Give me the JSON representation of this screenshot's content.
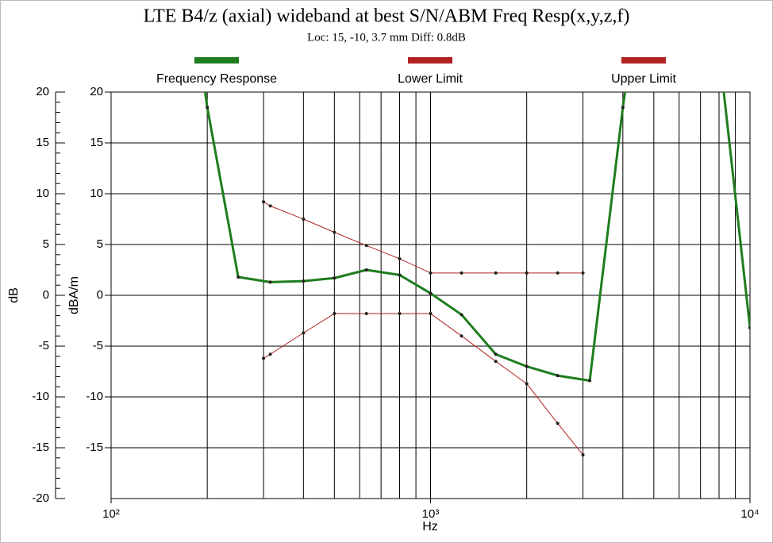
{
  "chart_data": {
    "type": "line",
    "title": "LTE B4/z (axial) wideband at best S/N/ABM Freq Resp(x,y,z,f)",
    "subtitle": "Loc: 15, -10, 3.7 mm Diff: 0.8dB",
    "xlabel": "Hz",
    "ylabel": "dB",
    "y2label": "dBA/m",
    "xscale": "log",
    "xlim": [
      100,
      10000
    ],
    "xticks": [
      {
        "value": 100,
        "label": "10²"
      },
      {
        "value": 1000,
        "label": "10³"
      },
      {
        "value": 10000,
        "label": "10⁴"
      }
    ],
    "xminor": [
      200,
      300,
      400,
      500,
      600,
      700,
      800,
      900,
      2000,
      3000,
      4000,
      5000,
      6000,
      7000,
      8000,
      9000
    ],
    "ylim": [
      -20,
      20
    ],
    "yticks": [
      -20,
      -15,
      -10,
      -5,
      0,
      5,
      10,
      15,
      20
    ],
    "y2lim": [
      -20,
      20
    ],
    "y2ticks": [
      -15,
      -10,
      -5,
      0,
      5,
      10,
      15,
      20
    ],
    "grid": true,
    "legend": "top",
    "series": [
      {
        "name": "Frequency Response",
        "color": "#1e7d1e",
        "x": [
          160,
          200,
          250,
          315,
          400,
          500,
          630,
          800,
          1000,
          1250,
          1600,
          2000,
          2500,
          3150,
          4000,
          5000,
          8000,
          10000
        ],
        "values": [
          40,
          18.5,
          1.8,
          1.3,
          1.4,
          1.7,
          2.5,
          2.0,
          0.2,
          -1.9,
          -5.8,
          -7.0,
          -7.9,
          -8.4,
          18.5,
          40,
          24.2,
          -3.2
        ]
      },
      {
        "name": "Lower Limit",
        "color": "#b22222",
        "x": [
          300,
          315,
          400,
          500,
          630,
          800,
          1000,
          1250,
          1600,
          2000,
          2500,
          3000
        ],
        "values": [
          -6.2,
          -5.8,
          -3.7,
          -1.8,
          -1.8,
          -1.8,
          -1.8,
          -4.0,
          -6.5,
          -8.7,
          -12.6,
          -15.7
        ]
      },
      {
        "name": "Upper Limit",
        "color": "#b22222",
        "x": [
          300,
          315,
          400,
          500,
          630,
          800,
          1000,
          1250,
          1600,
          2000,
          2500,
          3000
        ],
        "values": [
          9.2,
          8.8,
          7.5,
          6.2,
          4.9,
          3.6,
          2.2,
          2.2,
          2.2,
          2.2,
          2.2,
          2.2
        ]
      }
    ]
  }
}
